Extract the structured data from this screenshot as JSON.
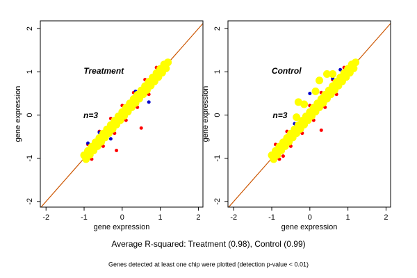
{
  "chart_data": [
    {
      "type": "scatter",
      "panel_label": "Treatment",
      "annotation": "n=3",
      "xlabel": "gene expression",
      "ylabel": "gene expression",
      "xlim": [
        -2.15,
        2.12
      ],
      "ylim": [
        -2.13,
        2.18
      ],
      "xticks": [
        -2,
        -1,
        0,
        1,
        2
      ],
      "yticks": [
        -2,
        -1,
        0,
        1,
        2
      ],
      "series": [
        {
          "color": "#cc5500",
          "mode": "line",
          "x": [
            -2.2,
            2.2
          ],
          "values": [
            -2.2,
            2.2
          ]
        },
        {
          "color": "#ff0000",
          "x": [
            -0.9,
            -0.6,
            -0.3,
            0.0,
            0.3,
            0.6,
            0.9,
            -0.8,
            -0.5,
            -0.2,
            0.1,
            0.4,
            0.7,
            -0.15,
            0.5
          ],
          "values": [
            -0.68,
            -0.38,
            -0.08,
            0.22,
            0.52,
            0.82,
            1.1,
            -1.02,
            -0.72,
            -0.42,
            -0.12,
            0.18,
            0.48,
            -0.82,
            -0.3
          ]
        },
        {
          "color": "#0000cc",
          "x": [
            -0.9,
            -0.3,
            0.55,
            0.35,
            -0.6,
            0.7
          ],
          "values": [
            -0.65,
            -0.55,
            0.6,
            0.55,
            -0.4,
            0.3
          ]
        },
        {
          "color": "#ffff00",
          "x": [
            -1.0,
            -0.95,
            -0.9,
            -0.85,
            -0.8,
            -0.75,
            -0.7,
            -0.65,
            -0.6,
            -0.55,
            -0.5,
            -0.45,
            -0.4,
            -0.35,
            -0.3,
            -0.25,
            -0.2,
            -0.15,
            -0.1,
            -0.05,
            0.0,
            0.05,
            0.1,
            0.15,
            0.2,
            0.25,
            0.3,
            0.35,
            0.4,
            0.45,
            0.5,
            0.55,
            0.6,
            0.65,
            0.7,
            0.75,
            0.8,
            0.85,
            0.9,
            0.95,
            1.0,
            1.05,
            1.1,
            1.15,
            1.2
          ],
          "values": [
            -0.93,
            -1.02,
            -0.83,
            -0.92,
            -0.73,
            -0.82,
            -0.63,
            -0.72,
            -0.53,
            -0.62,
            -0.43,
            -0.52,
            -0.33,
            -0.42,
            -0.23,
            -0.32,
            -0.13,
            -0.22,
            -0.03,
            -0.12,
            0.07,
            -0.02,
            0.17,
            0.08,
            0.27,
            0.18,
            0.37,
            0.28,
            0.47,
            0.38,
            0.57,
            0.48,
            0.67,
            0.58,
            0.77,
            0.68,
            0.87,
            0.78,
            0.97,
            0.88,
            1.07,
            0.98,
            1.17,
            1.08,
            1.22
          ]
        }
      ]
    },
    {
      "type": "scatter",
      "panel_label": "Control",
      "annotation": "n=3",
      "xlabel": "gene expression",
      "ylabel": "gene expression",
      "xlim": [
        -2.15,
        2.12
      ],
      "ylim": [
        -2.13,
        2.18
      ],
      "xticks": [
        -2,
        -1,
        0,
        1,
        2
      ],
      "yticks": [
        -2,
        -1,
        0,
        1,
        2
      ],
      "series": [
        {
          "color": "#cc5500",
          "mode": "line",
          "x": [
            -2.2,
            2.2
          ],
          "values": [
            -2.2,
            2.2
          ]
        },
        {
          "color": "#ff0000",
          "x": [
            -0.9,
            -0.6,
            -0.3,
            0.0,
            0.3,
            0.6,
            0.9,
            -0.8,
            -0.5,
            -0.2,
            0.1,
            0.4,
            0.7,
            0.3,
            -0.7
          ],
          "values": [
            -0.68,
            -0.38,
            -0.08,
            0.22,
            0.52,
            0.82,
            1.1,
            -1.02,
            -0.72,
            -0.42,
            -0.12,
            0.18,
            0.48,
            -0.35,
            -0.95
          ]
        },
        {
          "color": "#0000cc",
          "x": [
            0.0,
            0.8,
            -0.4,
            0.6
          ],
          "values": [
            0.5,
            1.05,
            -0.2,
            0.85
          ]
        },
        {
          "color": "#ffff00",
          "x": [
            -1.0,
            -0.95,
            -0.9,
            -0.85,
            -0.8,
            -0.75,
            -0.7,
            -0.65,
            -0.6,
            -0.55,
            -0.5,
            -0.45,
            -0.4,
            -0.35,
            -0.3,
            -0.25,
            -0.2,
            -0.15,
            -0.1,
            -0.05,
            0.0,
            0.05,
            0.1,
            0.15,
            0.2,
            0.25,
            0.3,
            0.35,
            0.4,
            0.45,
            0.5,
            0.55,
            0.6,
            0.65,
            0.7,
            0.75,
            0.8,
            0.85,
            0.9,
            0.95,
            1.0,
            1.05,
            1.1,
            1.15,
            1.2,
            -0.3,
            -0.15,
            0.25,
            0.45,
            0.6,
            -0.35,
            0.15
          ],
          "values": [
            -0.93,
            -1.02,
            -0.83,
            -0.92,
            -0.73,
            -0.82,
            -0.63,
            -0.72,
            -0.53,
            -0.62,
            -0.43,
            -0.52,
            -0.33,
            -0.42,
            -0.23,
            -0.32,
            -0.13,
            -0.22,
            -0.03,
            -0.12,
            0.07,
            -0.02,
            0.17,
            0.08,
            0.27,
            0.18,
            0.37,
            0.28,
            0.47,
            0.38,
            0.57,
            0.48,
            0.67,
            0.58,
            0.77,
            0.68,
            0.87,
            0.78,
            0.97,
            0.88,
            1.07,
            0.98,
            1.17,
            1.08,
            1.22,
            0.3,
            0.25,
            0.8,
            0.95,
            0.95,
            -0.05,
            0.55
          ]
        }
      ]
    }
  ],
  "caption": "Average R-squared: Treatment (0.98), Control (0.99)",
  "footnote": "Genes detected at least one chip were plotted (detection p-value < 0.01)"
}
